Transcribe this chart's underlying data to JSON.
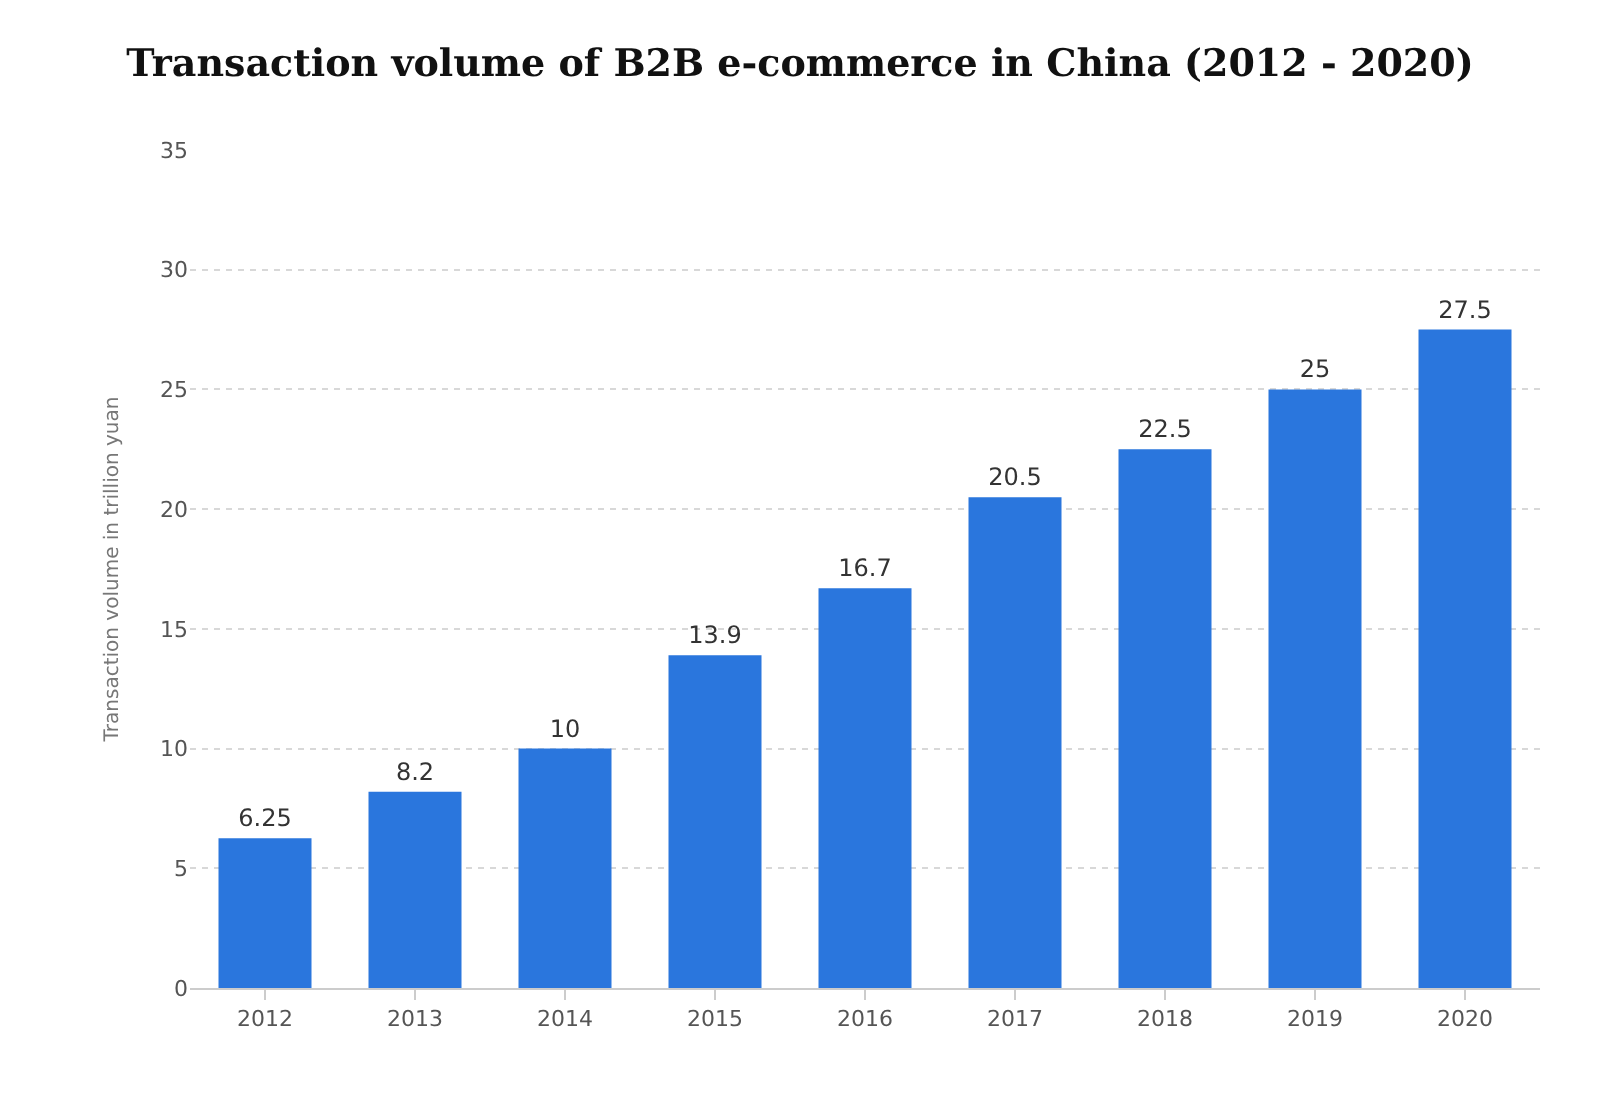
{
  "chart_data": {
    "type": "bar",
    "title": "Transaction volume of B2B e-commerce in China (2012 - 2020)",
    "ylabel": "Transaction volume in trillion yuan",
    "categories": [
      "2012",
      "2013",
      "2014",
      "2015",
      "2016",
      "2017",
      "2018",
      "2019",
      "2020"
    ],
    "values": [
      6.25,
      8.2,
      10,
      13.9,
      16.7,
      20.5,
      22.5,
      25,
      27.5
    ],
    "color": "#2a76dd",
    "ylim": [
      0,
      35
    ],
    "yticks": [
      0,
      5,
      10,
      15,
      20,
      25,
      30,
      35
    ],
    "grid": "y",
    "data_labels": true
  }
}
